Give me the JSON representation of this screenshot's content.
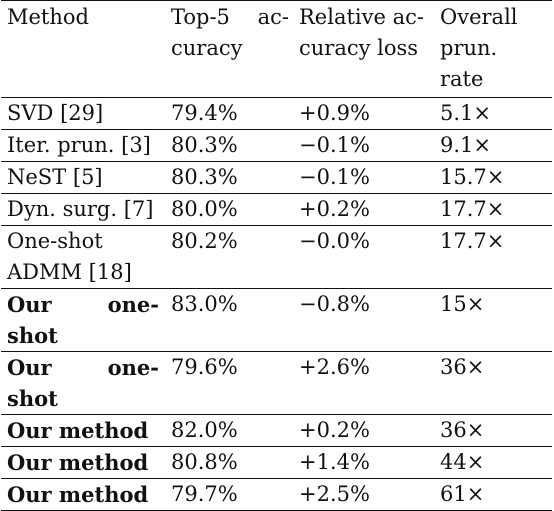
{
  "table": {
    "headers": [
      "Method",
      "Top-5 ac-\ncuracy",
      "Relative ac-\ncuracy loss",
      "Overall\nprun.\nrate"
    ],
    "header_lines": [
      [
        "Method"
      ],
      [
        "Top-5",
        "ac-",
        "curacy"
      ],
      [
        "Relative ac-",
        "curacy loss"
      ],
      [
        "Overall",
        "prun.",
        "rate"
      ]
    ],
    "rows": [
      {
        "method": "SVD [29]",
        "top5": "79.4%",
        "loss": "+0.9%",
        "rate": "5.1×"
      },
      {
        "method": "Iter. prun. [3]",
        "top5": "80.3%",
        "loss": "−0.1%",
        "rate": "9.1×"
      },
      {
        "method": "NeST [5]",
        "top5": "80.3%",
        "loss": "−0.1%",
        "rate": "15.7×"
      },
      {
        "method": "Dyn. surg. [7]",
        "top5": "80.0%",
        "loss": "+0.2%",
        "rate": "17.7×"
      },
      {
        "method": "One-shot ADMM [18]",
        "method_line1": "One-shot",
        "method_line2": "ADMM [18]",
        "top5": "80.2%",
        "loss": "−0.0%",
        "rate": "17.7×"
      },
      {
        "method": "Our one-shot",
        "method_w1": "Our",
        "method_w2": "one-",
        "method_line2": "shot",
        "top5": "83.0%",
        "loss": "−0.8%",
        "rate": "15×"
      },
      {
        "method": "Our one-shot",
        "method_w1": "Our",
        "method_w2": "one-",
        "method_line2": "shot",
        "top5": "79.6%",
        "loss": "+2.6%",
        "rate": "36×"
      },
      {
        "method": "Our method",
        "top5": "82.0%",
        "loss": "+0.2%",
        "rate": "36×"
      },
      {
        "method": "Our method",
        "top5": "80.8%",
        "loss": "+1.4%",
        "rate": "44×"
      },
      {
        "method": "Our method",
        "top5": "79.7%",
        "loss": "+2.5%",
        "rate": "61×"
      }
    ]
  }
}
